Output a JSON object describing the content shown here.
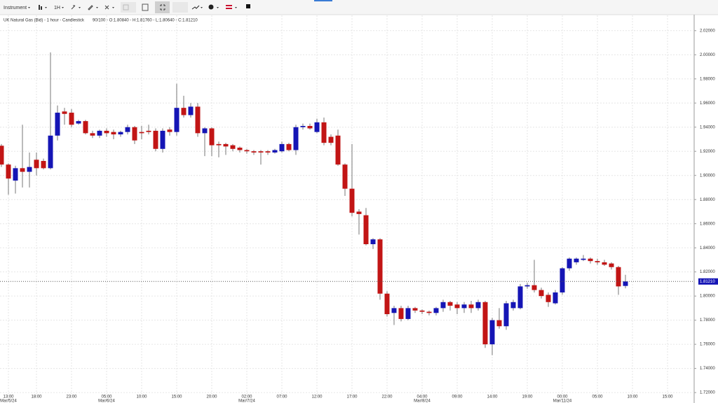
{
  "toolbar": {
    "instrument": "Instrument",
    "interval": "1H"
  },
  "chart_data": {
    "type": "candlestick",
    "title": "UK Natural Gas (Bid) - 1 hour - Candlestick",
    "subtitle": "90/100 - O:1.80840 - H:1.81760 - L:1.80640 - C:1.81210",
    "categories": [
      null,
      "13:00",
      null,
      null,
      null,
      "18:00",
      null,
      null,
      null,
      null,
      "23:00",
      null,
      null,
      null,
      null,
      "05:00",
      null,
      null,
      null,
      null,
      "10:00",
      null,
      null,
      null,
      null,
      "15:00",
      null,
      null,
      null,
      null,
      "20:00",
      null,
      null,
      null,
      null,
      "02:00",
      null,
      null,
      null,
      null,
      "07:00",
      null,
      null,
      null,
      null,
      "12:00",
      null,
      null,
      null,
      null,
      "17:00",
      null,
      null,
      null,
      null,
      "22:00",
      null,
      null,
      null,
      null,
      "04:00",
      null,
      null,
      null,
      null,
      "09:00",
      null,
      null,
      null,
      null,
      "14:00",
      null,
      null,
      null,
      null,
      "19:00",
      null,
      null,
      null,
      null,
      "00:00",
      null,
      null,
      null,
      null,
      "05:00",
      null,
      null,
      null,
      null,
      "10:00",
      null,
      null,
      null,
      null,
      "15:00"
    ],
    "dates": [
      null,
      "Mar/5/24",
      null,
      null,
      null,
      null,
      null,
      null,
      null,
      null,
      null,
      null,
      null,
      null,
      null,
      "Mar/6/24",
      null,
      null,
      null,
      null,
      null,
      null,
      null,
      null,
      null,
      null,
      null,
      null,
      null,
      null,
      null,
      null,
      null,
      null,
      null,
      "Mar/7/24",
      null,
      null,
      null,
      null,
      null,
      null,
      null,
      null,
      null,
      null,
      null,
      null,
      null,
      null,
      null,
      null,
      null,
      null,
      null,
      null,
      null,
      null,
      null,
      null,
      "Mar/8/24",
      null,
      null,
      null,
      null,
      null,
      null,
      null,
      null,
      null,
      null,
      null,
      null,
      null,
      null,
      null,
      null,
      null,
      null,
      null,
      "Mar/11/24",
      null,
      null,
      null,
      null,
      null,
      null,
      null,
      null,
      null,
      null,
      null,
      null,
      null,
      null,
      null
    ],
    "open": [
      1.9246,
      1.909,
      1.8957,
      1.906,
      1.903,
      1.913,
      1.912,
      1.906,
      1.933,
      1.953,
      1.952,
      1.943,
      1.945,
      1.935,
      1.933,
      1.937,
      1.936,
      1.934,
      1.936,
      1.94,
      1.936,
      1.937,
      1.937,
      1.922,
      1.938,
      1.936,
      1.956,
      1.95,
      1.957,
      1.935,
      1.939,
      1.926,
      1.926,
      1.925,
      1.923,
      1.921,
      1.92,
      1.92,
      1.92,
      1.919,
      1.92,
      1.926,
      1.921,
      1.94,
      1.941,
      1.936,
      1.944,
      1.932,
      1.933,
      1.909,
      1.889,
      1.87,
      1.867,
      1.843,
      1.847,
      1.802,
      1.786,
      1.79,
      1.781,
      1.79,
      1.788,
      1.787,
      1.786,
      1.79,
      1.795,
      1.793,
      1.79,
      1.793,
      1.79,
      1.795,
      1.76,
      1.78,
      1.775,
      1.79,
      1.79,
      1.808,
      1.809,
      1.805,
      1.801,
      1.794,
      1.803,
      1.823,
      1.828,
      1.83,
      1.831,
      1.829,
      1.828,
      1.827,
      1.824,
      1.8084,
      null,
      null,
      null,
      null,
      null,
      null
    ],
    "high": [
      1.926,
      1.91,
      1.908,
      1.942,
      1.919,
      1.919,
      1.914,
      2.002,
      1.958,
      1.956,
      1.955,
      1.946,
      1.946,
      1.937,
      1.938,
      1.939,
      1.938,
      1.937,
      1.942,
      1.941,
      1.941,
      1.942,
      1.939,
      1.939,
      1.94,
      1.976,
      1.966,
      1.96,
      1.96,
      1.94,
      1.94,
      1.928,
      1.927,
      1.926,
      1.924,
      1.922,
      1.921,
      1.921,
      1.921,
      1.922,
      1.928,
      1.927,
      1.942,
      1.943,
      1.943,
      1.947,
      1.948,
      1.934,
      1.938,
      1.91,
      1.926,
      1.872,
      1.873,
      1.848,
      1.848,
      1.804,
      1.792,
      1.792,
      1.792,
      1.791,
      1.789,
      1.788,
      1.791,
      1.797,
      1.796,
      1.795,
      1.795,
      1.796,
      1.797,
      1.796,
      1.782,
      1.79,
      1.796,
      1.797,
      1.81,
      1.811,
      1.83,
      1.807,
      1.803,
      1.805,
      1.824,
      1.832,
      1.832,
      1.834,
      1.832,
      1.831,
      1.83,
      1.828,
      1.825,
      1.8176,
      null,
      null,
      null,
      null,
      null,
      null
    ],
    "low": [
      1.907,
      1.884,
      1.885,
      1.89,
      1.89,
      1.9,
      1.905,
      1.905,
      1.929,
      1.942,
      1.94,
      1.942,
      1.934,
      1.931,
      1.931,
      1.932,
      1.93,
      1.932,
      1.934,
      1.926,
      1.93,
      1.934,
      1.92,
      1.919,
      1.933,
      1.933,
      1.948,
      1.948,
      1.932,
      1.916,
      1.916,
      1.915,
      1.917,
      1.92,
      1.919,
      1.918,
      1.917,
      1.909,
      1.917,
      1.918,
      1.919,
      1.92,
      1.917,
      1.938,
      1.938,
      1.935,
      1.925,
      1.925,
      1.908,
      1.883,
      1.866,
      1.851,
      1.842,
      1.839,
      1.797,
      1.783,
      1.776,
      1.779,
      1.78,
      1.786,
      1.785,
      1.784,
      1.784,
      1.787,
      1.788,
      1.785,
      1.786,
      1.786,
      1.788,
      1.757,
      1.751,
      1.773,
      1.772,
      1.788,
      1.789,
      1.806,
      1.803,
      1.798,
      1.791,
      1.793,
      1.801,
      1.821,
      1.826,
      1.829,
      1.827,
      1.826,
      1.825,
      1.822,
      1.801,
      1.8064,
      null,
      null,
      null,
      null,
      null,
      null
    ],
    "close": [
      1.909,
      1.8974,
      1.906,
      1.903,
      1.907,
      1.906,
      1.906,
      1.933,
      1.952,
      1.951,
      1.942,
      1.945,
      1.935,
      1.933,
      1.937,
      1.935,
      1.934,
      1.936,
      1.94,
      1.929,
      1.935,
      1.936,
      1.922,
      1.937,
      1.936,
      1.956,
      1.95,
      1.957,
      1.935,
      1.939,
      1.925,
      1.925,
      1.924,
      1.922,
      1.921,
      1.92,
      1.919,
      1.919,
      1.919,
      1.921,
      1.926,
      1.921,
      1.94,
      1.941,
      1.939,
      1.944,
      1.927,
      1.927,
      1.909,
      1.889,
      1.869,
      1.868,
      1.843,
      1.847,
      1.802,
      1.785,
      1.79,
      1.781,
      1.79,
      1.788,
      1.787,
      1.786,
      1.79,
      1.795,
      1.792,
      1.79,
      1.793,
      1.79,
      1.795,
      1.76,
      1.78,
      1.775,
      1.794,
      1.795,
      1.808,
      1.809,
      1.805,
      1.8,
      1.795,
      1.803,
      1.823,
      1.831,
      1.831,
      1.831,
      1.829,
      1.828,
      1.826,
      1.824,
      1.808,
      1.8121,
      null,
      null,
      null,
      null,
      null,
      null
    ],
    "up_color": "#1515b5",
    "down_color": "#c21515",
    "last_price": {
      "value": 1.8121,
      "label": "1.81210"
    },
    "ylim": [
      1.716,
      2.028
    ],
    "yticks": [
      {
        "value": 1.72,
        "label": "1.72000"
      },
      {
        "value": 1.74,
        "label": "1.74000"
      },
      {
        "value": 1.76,
        "label": "1.76000"
      },
      {
        "value": 1.78,
        "label": "1.78000"
      },
      {
        "value": 1.8,
        "label": "1.80000"
      },
      {
        "value": 1.82,
        "label": "1.82000"
      },
      {
        "value": 1.84,
        "label": "1.84000"
      },
      {
        "value": 1.86,
        "label": "1.86000"
      },
      {
        "value": 1.88,
        "label": "1.88000"
      },
      {
        "value": 1.9,
        "label": "1.90000"
      },
      {
        "value": 1.92,
        "label": "1.92000"
      },
      {
        "value": 1.94,
        "label": "1.94000"
      },
      {
        "value": 1.96,
        "label": "1.96000"
      },
      {
        "value": 1.98,
        "label": "1.98000"
      },
      {
        "value": 2.0,
        "label": "2.00000"
      },
      {
        "value": 2.02,
        "label": "2.02000"
      }
    ],
    "grid": true
  }
}
